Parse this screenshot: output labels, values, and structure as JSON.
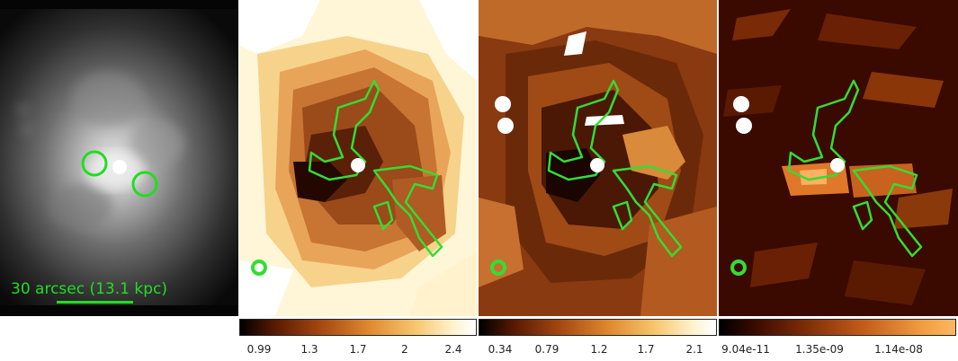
{
  "panels": [
    {
      "name": "xray-image",
      "colormap": "grayscale"
    },
    {
      "name": "map-2",
      "colormap": "heat"
    },
    {
      "name": "map-3",
      "colormap": "heat"
    },
    {
      "name": "map-4",
      "colormap": "heat"
    }
  ],
  "scale_bar": {
    "label": "30 arcsec (13.1 kpc)",
    "color": "#22dd22"
  },
  "colorbars": [
    {
      "ticks": [
        "0.99",
        "1.3",
        "1.7",
        "2",
        "2.4"
      ]
    },
    {
      "ticks": [
        "0.34",
        "0.79",
        "1.2",
        "1.7",
        "2.1"
      ]
    },
    {
      "ticks": [
        "9.04e-11",
        "1.35e-09",
        "1.14e-08"
      ]
    }
  ],
  "colors": {
    "contour": "#33dd33",
    "heat_dark": "#000000",
    "heat_mid": "#a0400f",
    "heat_bright": "#ffffff"
  }
}
